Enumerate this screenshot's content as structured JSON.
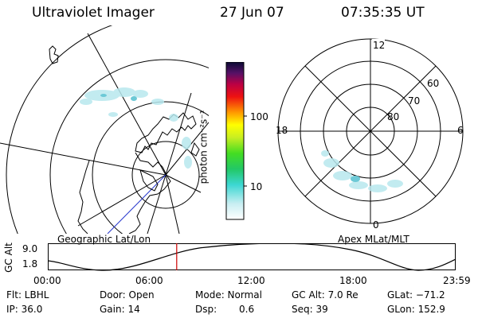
{
  "header": {
    "instrument": "Ultraviolet Imager",
    "date": "27 Jun 07",
    "time": "07:35:35 UT"
  },
  "left_map": {
    "label": "Geographic Lat/Lon"
  },
  "right_map": {
    "label": "Apex MLat/MLT",
    "mlt_labels": [
      "12",
      "18",
      "6",
      "0"
    ],
    "lat_labels": [
      "60",
      "70",
      "80"
    ]
  },
  "colorbar": {
    "unit_label": "photon cm⁻²s⁻¹",
    "ticks": [
      "100",
      "10"
    ]
  },
  "altitude_panel": {
    "axis_label": "GC Alt",
    "y_ticks": [
      "9.0",
      "1.8"
    ],
    "x_ticks": [
      "00:00",
      "06:00",
      "12:00",
      "18:00",
      "23:59"
    ],
    "current_time_fraction": 0.316
  },
  "info": {
    "filter": "Flt: LBHL",
    "ip": "IP: 36.0",
    "door": "Door: Open",
    "gain": "Gain: 14",
    "mode": "Mode: Normal",
    "dsp_label": "Dsp:",
    "dsp_value": "0.6",
    "gc_alt": "GC Alt: 7.0 Re",
    "seq": "Seq: 39",
    "glat": "GLat: −71.2",
    "glon": "GLon: 152.9"
  },
  "colors": {
    "accent_line": "#cc0000",
    "track": "#000000"
  }
}
